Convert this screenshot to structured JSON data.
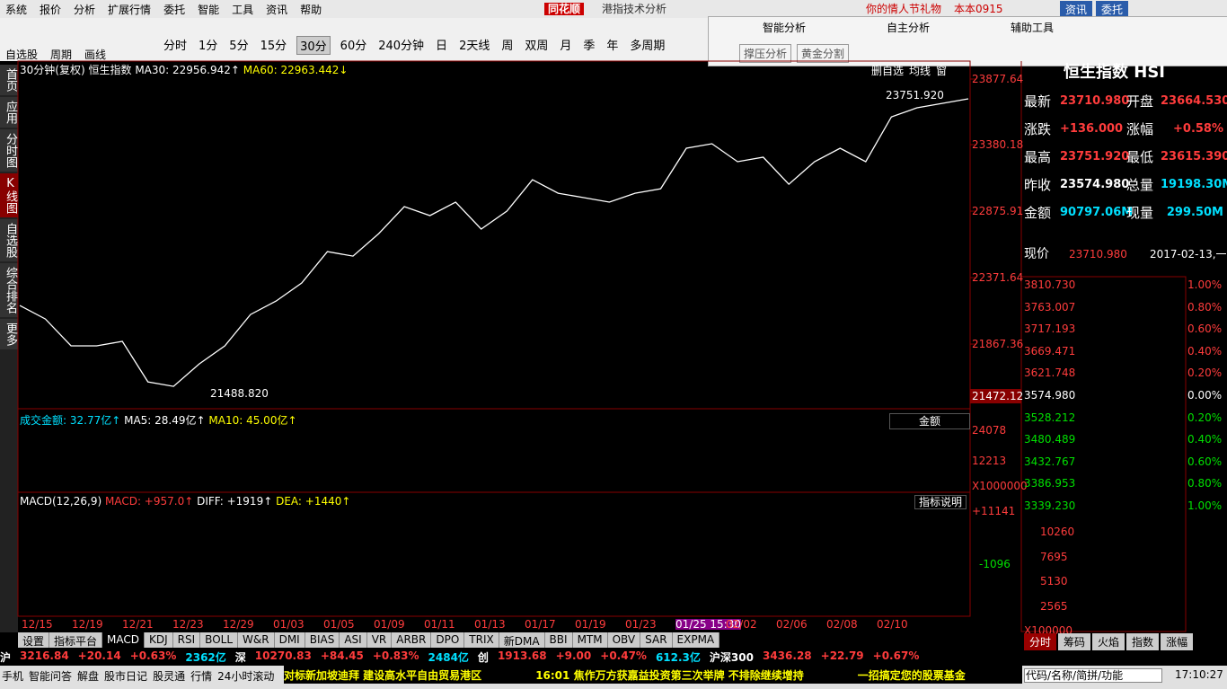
{
  "menu": [
    "系统",
    "报价",
    "分析",
    "扩展行情",
    "委托",
    "智能",
    "工具",
    "资讯",
    "帮助"
  ],
  "logo": "同花顺",
  "app_title": "港指技术分析",
  "promo": "你的情人节礼物",
  "user": "本本0915",
  "top_buttons": [
    "资讯",
    "委托"
  ],
  "tools": [
    "自选股",
    "周期",
    "画线"
  ],
  "periods": [
    "分时",
    "1分",
    "5分",
    "15分",
    "30分",
    "60分",
    "240分钟",
    "日",
    "2天线",
    "周",
    "双周",
    "月",
    "季",
    "年",
    "多周期"
  ],
  "active_period": 4,
  "analysis_tabs": [
    "智能分析",
    "自主分析",
    "辅助工具"
  ],
  "analysis_buttons": [
    "撑压分析",
    "黄金分割"
  ],
  "sidebar": [
    "首页",
    "应用",
    "分时图",
    "K线图",
    "自选股",
    "综合排名",
    "更多"
  ],
  "kline_header": [
    "30分钟(复权)",
    "恒生指数"
  ],
  "ma_labels": [
    "MA30: 22956.942↑",
    "MA60: 22963.442↓"
  ],
  "chart_buttons": [
    "删自选",
    "均线",
    "窗"
  ],
  "chart_data": {
    "type": "line",
    "color": "#ffffff",
    "values": [
      22160,
      22058,
      21854,
      21854,
      21888,
      21581,
      21547,
      21717,
      21854,
      22092,
      22194,
      22331,
      22569,
      22535,
      22705,
      22910,
      22842,
      22944,
      22740,
      22876,
      23114,
      23012,
      22978,
      22944,
      23012,
      23046,
      23353,
      23387,
      23251,
      23285,
      23080,
      23251,
      23353,
      23251,
      23591,
      23660,
      23694,
      23728
    ],
    "ylim": [
      21377,
      24014
    ],
    "yticks": [
      23877.64,
      23380.18,
      22875.91,
      22371.64,
      21867.36
    ],
    "current": 21472.12,
    "high_label": "23751.920",
    "low_label": "21488.820"
  },
  "volume_header": [
    "成交金额: 32.77亿↑",
    "MA5: 28.49亿↑",
    "MA10: 45.00亿↑"
  ],
  "volume_axis": [
    "24078",
    "12213",
    "X1000000"
  ],
  "volume_select": "金额",
  "macd_header": [
    "MACD(12,26,9)",
    "MACD: +957.0↑",
    "DIFF: +1919↑",
    "DEA: +1440↑"
  ],
  "macd_axis": [
    "+11141",
    "-1096"
  ],
  "macd_button": "指标说明",
  "dates": [
    "12/15",
    "12/19",
    "12/21",
    "12/23",
    "12/29",
    "01/03",
    "01/05",
    "01/09",
    "01/11",
    "01/13",
    "01/17",
    "01/19",
    "01/23",
    "01/25 15:30",
    "02/02",
    "02/06",
    "02/08",
    "02/10"
  ],
  "indicator_tabs": [
    "设置",
    "指标平台",
    "MACD",
    "KDJ",
    "RSI",
    "BOLL",
    "W&R",
    "DMI",
    "BIAS",
    "ASI",
    "VR",
    "ARBR",
    "DPO",
    "TRIX",
    "新DMA",
    "BBI",
    "MTM",
    "OBV",
    "SAR",
    "EXPMA"
  ],
  "ticker": [
    [
      "沪",
      "3216.84",
      "+20.14",
      "+0.63%",
      "2362亿"
    ],
    [
      "深",
      "10270.83",
      "+84.45",
      "+0.83%",
      "2484亿"
    ],
    [
      "创",
      "1913.68",
      "+9.00",
      "+0.47%",
      "612.3亿"
    ],
    [
      "沪深300",
      "3436.28",
      "+22.79",
      "+0.67%"
    ]
  ],
  "footer_buttons": [
    "手机",
    "智能问答",
    "解盘",
    "股市日记",
    "股灵通",
    "行情",
    "24小时滚动"
  ],
  "news": [
    "对标新加坡迪拜 建设高水平自由贸易港区",
    "16:01 焦作万方获嘉益投资第三次举牌 不排除继续增持",
    "一招搞定您的股票基金"
  ],
  "search": "代码/名称/简拼/功能",
  "clock": "17:10:27",
  "quote_title": "恒生指数 HSI",
  "quote_rows": [
    [
      "最新",
      "23710.980",
      "开盘",
      "23664.530"
    ],
    [
      "涨跌",
      "+136.000",
      "涨幅",
      "+0.58%"
    ],
    [
      "最高",
      "23751.920",
      "最低",
      "23615.390"
    ],
    [
      "昨收",
      "23574.980",
      "总量",
      "19198.30M"
    ],
    [
      "金额",
      "90797.06M",
      "现量",
      "299.50M"
    ]
  ],
  "price_now": [
    "现价",
    "23710.980",
    "2017-02-13,一"
  ],
  "intraday_left": [
    "3810.730",
    "3763.007",
    "3717.193",
    "3669.471",
    "3621.748",
    "3574.980",
    "3528.212",
    "3480.489",
    "3432.767",
    "3386.953",
    "3339.230"
  ],
  "intraday_right": [
    "1.00%",
    "0.80%",
    "0.60%",
    "0.40%",
    "0.20%",
    "0.00%",
    "0.20%",
    "0.40%",
    "0.60%",
    "0.80%",
    "1.00%"
  ],
  "intraday_volume": [
    "10260",
    "7695",
    "5130",
    "2565",
    "X100000"
  ],
  "right_tabs": [
    "分时",
    "筹码",
    "火焰",
    "指数",
    "涨幅"
  ]
}
